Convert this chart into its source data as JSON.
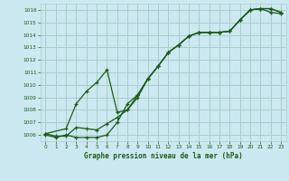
{
  "title": "Graphe pression niveau de la mer (hPa)",
  "background_color": "#cce8f0",
  "grid_color": "#aacccc",
  "line_color": "#1a5c1a",
  "ylim": [
    1005.5,
    1016.5
  ],
  "xlim": [
    -0.5,
    23.5
  ],
  "ytick_vals": [
    1006,
    1007,
    1008,
    1009,
    1010,
    1011,
    1012,
    1013,
    1014,
    1015,
    1016
  ],
  "xtick_vals": [
    0,
    1,
    2,
    3,
    4,
    5,
    6,
    7,
    8,
    9,
    10,
    11,
    12,
    13,
    14,
    15,
    16,
    17,
    18,
    19,
    20,
    21,
    22,
    23
  ],
  "series1_x": [
    0,
    1,
    2,
    3,
    4,
    5,
    6,
    7,
    8,
    9,
    10,
    11,
    12,
    13,
    14,
    15,
    16,
    17,
    18,
    19,
    20,
    21,
    22,
    23
  ],
  "series1_y": [
    1006.0,
    1005.8,
    1006.0,
    1005.8,
    1005.8,
    1005.8,
    1006.0,
    1007.0,
    1008.5,
    1009.2,
    1010.5,
    1011.5,
    1012.6,
    1013.2,
    1013.9,
    1014.2,
    1014.2,
    1014.2,
    1014.3,
    1015.2,
    1016.0,
    1016.1,
    1016.1,
    1015.8
  ],
  "series2_x": [
    0,
    1,
    2,
    3,
    4,
    5,
    6,
    7,
    8,
    9,
    10,
    11,
    12,
    13,
    14,
    15,
    16,
    17,
    18,
    19,
    20,
    21,
    22,
    23
  ],
  "series2_y": [
    1006.1,
    1005.9,
    1005.9,
    1006.6,
    1006.5,
    1006.4,
    1006.9,
    1007.4,
    1008.0,
    1009.0,
    1010.5,
    1011.5,
    1012.6,
    1013.2,
    1013.9,
    1014.2,
    1014.2,
    1014.2,
    1014.3,
    1015.2,
    1016.0,
    1016.1,
    1016.1,
    1015.8
  ],
  "series3_x": [
    0,
    2,
    3,
    4,
    5,
    6,
    7,
    8,
    9,
    10,
    11,
    12,
    13,
    14,
    15,
    16,
    17,
    18,
    19,
    20,
    21,
    22,
    23
  ],
  "series3_y": [
    1006.1,
    1006.5,
    1008.5,
    1009.5,
    1010.2,
    1011.2,
    1007.8,
    1008.0,
    1009.2,
    1010.5,
    1011.5,
    1012.6,
    1013.2,
    1013.9,
    1014.2,
    1014.2,
    1014.2,
    1014.3,
    1015.2,
    1016.0,
    1016.1,
    1015.8,
    1015.7
  ],
  "figw": 3.2,
  "figh": 2.0,
  "dpi": 100
}
